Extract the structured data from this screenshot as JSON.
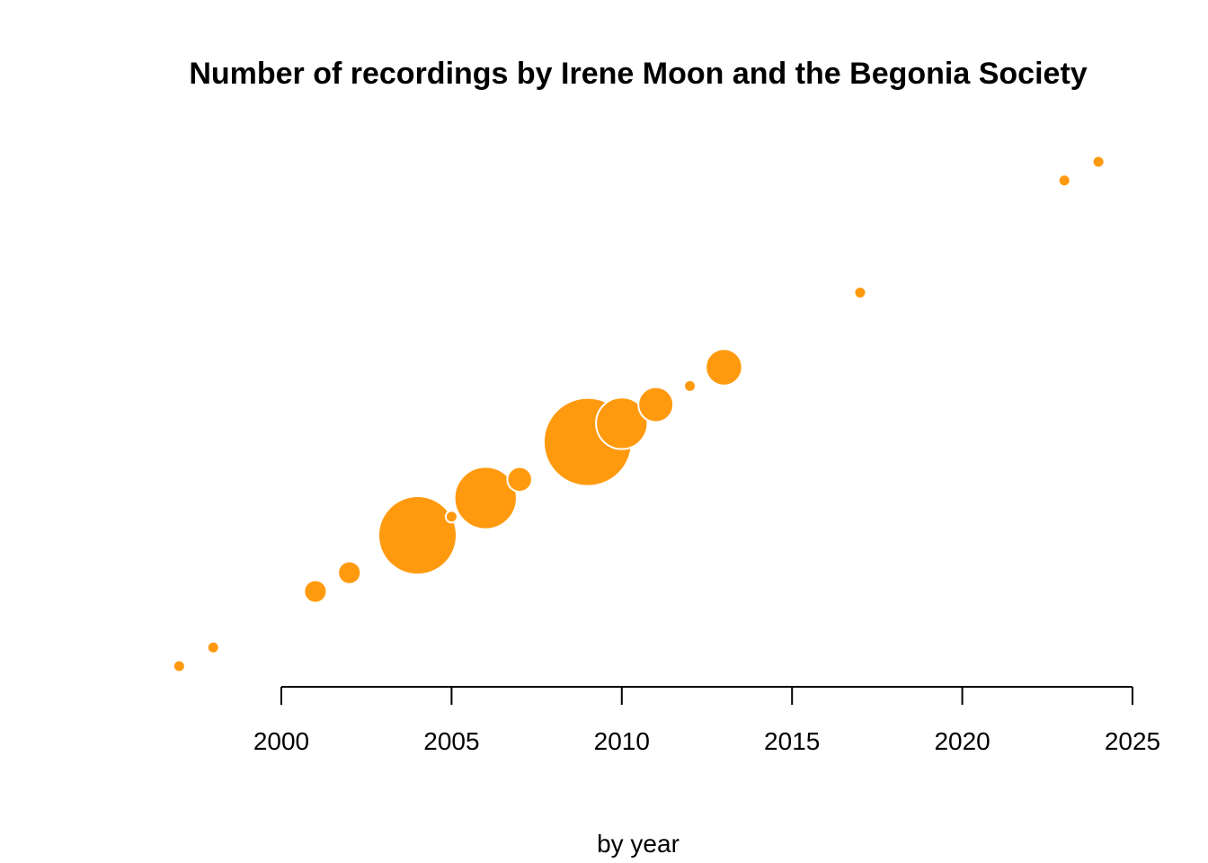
{
  "chart_data": {
    "type": "scatter",
    "title": "Number of recordings by Irene Moon and the Begonia Society",
    "xlabel": "by year",
    "ylabel": "",
    "xlim": [
      1996.7,
      2025.3
    ],
    "xticks": [
      2000,
      2005,
      2010,
      2015,
      2020,
      2025
    ],
    "tick_labels": [
      "2000",
      "2005",
      "2010",
      "2015",
      "2020",
      "2025"
    ],
    "grid": false,
    "legend": "none",
    "y_axis_shown": false,
    "color": "#ff9a0e",
    "points": [
      {
        "x": 1997,
        "size": 1
      },
      {
        "x": 1998,
        "size": 1
      },
      {
        "x": 2001,
        "size": 5
      },
      {
        "x": 2002,
        "size": 5
      },
      {
        "x": 2004,
        "size": 60
      },
      {
        "x": 2005,
        "size": 1
      },
      {
        "x": 2006,
        "size": 38
      },
      {
        "x": 2007,
        "size": 6
      },
      {
        "x": 2008,
        "size": 2
      },
      {
        "x": 2009,
        "size": 76
      },
      {
        "x": 2010,
        "size": 26
      },
      {
        "x": 2011,
        "size": 12
      },
      {
        "x": 2012,
        "size": 1
      },
      {
        "x": 2013,
        "size": 13
      },
      {
        "x": 2017,
        "size": 1
      },
      {
        "x": 2023,
        "size": 1
      },
      {
        "x": 2024,
        "size": 1
      }
    ]
  }
}
